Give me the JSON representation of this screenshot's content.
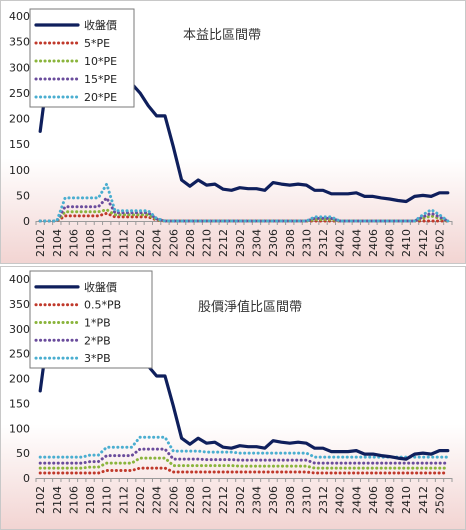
{
  "chart_data": [
    {
      "type": "line",
      "title": "本益比區間帶",
      "ylim": [
        0,
        400
      ],
      "yticks": [
        0,
        50,
        100,
        150,
        200,
        250,
        300,
        350,
        400
      ],
      "x": [
        "2102",
        "2103",
        "2104",
        "2105",
        "2106",
        "2107",
        "2108",
        "2109",
        "2110",
        "2111",
        "2112",
        "2201",
        "2202",
        "2203",
        "2204",
        "2205",
        "2206",
        "2207",
        "2208",
        "2209",
        "2210",
        "2211",
        "2212",
        "2301",
        "2302",
        "2303",
        "2304",
        "2305",
        "2306",
        "2307",
        "2308",
        "2309",
        "2310",
        "2311",
        "2312",
        "2401",
        "2402",
        "2403",
        "2404",
        "2405",
        "2406",
        "2407",
        "2408",
        "2409",
        "2410",
        "2411",
        "2412",
        "2501",
        "2502",
        "2503"
      ],
      "xtick_labels": [
        "2102",
        "2104",
        "2106",
        "2108",
        "2110",
        "2112",
        "2202",
        "2204",
        "2206",
        "2208",
        "2210",
        "2212",
        "2302",
        "2304",
        "2306",
        "2308",
        "2310",
        "2312",
        "2402",
        "2404",
        "2406",
        "2408",
        "2410",
        "2412",
        "2502"
      ],
      "grid": false,
      "legend": "top-left",
      "series": [
        {
          "name": "收盤價",
          "color": "#0f1f5c",
          "style": "solid",
          "values": [
            175,
            300,
            320,
            310,
            300,
            300,
            310,
            305,
            290,
            250,
            235,
            268,
            250,
            225,
            205,
            205,
            145,
            80,
            68,
            80,
            70,
            72,
            62,
            60,
            65,
            63,
            63,
            60,
            75,
            72,
            70,
            72,
            70,
            60,
            60,
            53,
            53,
            53,
            55,
            48,
            48,
            45,
            43,
            40,
            38,
            48,
            50,
            48,
            55,
            55
          ]
        },
        {
          "name": "5*PE",
          "color": "#c0392b",
          "style": "dotted",
          "values": [
            0,
            0,
            0,
            10,
            10,
            10,
            10,
            10,
            15,
            8,
            8,
            8,
            8,
            8,
            2,
            0,
            0,
            0,
            0,
            0,
            0,
            0,
            0,
            0,
            0,
            0,
            0,
            0,
            0,
            0,
            0,
            0,
            0,
            0,
            0,
            0,
            0,
            0,
            0,
            0,
            0,
            0,
            0,
            0,
            0,
            0,
            0,
            0,
            0,
            0
          ]
        },
        {
          "name": "10*PE",
          "color": "#8ab43c",
          "style": "dotted",
          "values": [
            0,
            0,
            0,
            18,
            18,
            18,
            18,
            18,
            22,
            12,
            12,
            12,
            12,
            12,
            3,
            0,
            0,
            0,
            0,
            0,
            0,
            0,
            0,
            0,
            0,
            0,
            0,
            0,
            0,
            0,
            0,
            0,
            0,
            3,
            3,
            3,
            0,
            0,
            0,
            0,
            0,
            0,
            0,
            0,
            0,
            0,
            5,
            10,
            5,
            0
          ]
        },
        {
          "name": "15*PE",
          "color": "#6a4c9c",
          "style": "dotted",
          "values": [
            0,
            0,
            0,
            28,
            28,
            28,
            28,
            28,
            45,
            16,
            16,
            16,
            16,
            16,
            4,
            0,
            0,
            0,
            0,
            0,
            0,
            0,
            0,
            0,
            0,
            0,
            0,
            0,
            0,
            0,
            0,
            0,
            0,
            5,
            5,
            5,
            0,
            0,
            0,
            0,
            0,
            0,
            0,
            0,
            0,
            0,
            8,
            15,
            8,
            0
          ]
        },
        {
          "name": "20*PE",
          "color": "#4aaed0",
          "style": "dotted",
          "values": [
            0,
            0,
            0,
            45,
            45,
            45,
            45,
            45,
            72,
            20,
            20,
            20,
            20,
            20,
            5,
            0,
            0,
            0,
            0,
            0,
            0,
            0,
            0,
            0,
            0,
            0,
            0,
            0,
            0,
            0,
            0,
            0,
            0,
            8,
            8,
            8,
            0,
            0,
            0,
            0,
            0,
            0,
            0,
            0,
            0,
            0,
            12,
            22,
            12,
            0
          ]
        }
      ]
    },
    {
      "type": "line",
      "title": "股價淨值比區間帶",
      "ylim": [
        0,
        400
      ],
      "yticks": [
        0,
        50,
        100,
        150,
        200,
        250,
        300,
        350,
        400
      ],
      "x": [
        "2102",
        "2103",
        "2104",
        "2105",
        "2106",
        "2107",
        "2108",
        "2109",
        "2110",
        "2111",
        "2112",
        "2201",
        "2202",
        "2203",
        "2204",
        "2205",
        "2206",
        "2207",
        "2208",
        "2209",
        "2210",
        "2211",
        "2212",
        "2301",
        "2302",
        "2303",
        "2304",
        "2305",
        "2306",
        "2307",
        "2308",
        "2309",
        "2310",
        "2311",
        "2312",
        "2401",
        "2402",
        "2403",
        "2404",
        "2405",
        "2406",
        "2407",
        "2408",
        "2409",
        "2410",
        "2411",
        "2412",
        "2501",
        "2502",
        "2503"
      ],
      "xtick_labels": [
        "2102",
        "2104",
        "2106",
        "2108",
        "2110",
        "2112",
        "2202",
        "2204",
        "2206",
        "2208",
        "2210",
        "2212",
        "2302",
        "2304",
        "2306",
        "2308",
        "2310",
        "2312",
        "2402",
        "2404",
        "2406",
        "2408",
        "2410",
        "2412",
        "2502"
      ],
      "grid": false,
      "legend": "top-left",
      "series": [
        {
          "name": "收盤價",
          "color": "#0f1f5c",
          "style": "solid",
          "values": [
            175,
            300,
            320,
            310,
            300,
            300,
            310,
            305,
            290,
            250,
            235,
            268,
            250,
            225,
            205,
            205,
            145,
            80,
            68,
            80,
            70,
            72,
            62,
            60,
            65,
            63,
            63,
            60,
            75,
            72,
            70,
            72,
            70,
            60,
            60,
            53,
            53,
            53,
            55,
            48,
            48,
            45,
            43,
            40,
            38,
            48,
            50,
            48,
            55,
            55
          ]
        },
        {
          "name": "0.5*PB",
          "color": "#c0392b",
          "style": "dotted",
          "values": [
            10,
            10,
            10,
            10,
            10,
            10,
            10,
            10,
            15,
            15,
            15,
            15,
            20,
            20,
            20,
            20,
            12,
            12,
            12,
            12,
            12,
            12,
            12,
            12,
            12,
            12,
            12,
            12,
            12,
            12,
            12,
            12,
            12,
            10,
            10,
            10,
            10,
            10,
            10,
            10,
            10,
            10,
            10,
            10,
            10,
            10,
            10,
            10,
            10,
            10
          ]
        },
        {
          "name": "1*PB",
          "color": "#8ab43c",
          "style": "dotted",
          "values": [
            20,
            20,
            20,
            20,
            20,
            20,
            22,
            22,
            30,
            30,
            30,
            30,
            40,
            40,
            40,
            40,
            25,
            25,
            25,
            25,
            25,
            25,
            25,
            25,
            24,
            24,
            24,
            24,
            24,
            24,
            24,
            24,
            24,
            20,
            20,
            20,
            20,
            20,
            20,
            20,
            20,
            20,
            20,
            20,
            20,
            20,
            20,
            20,
            20,
            20
          ]
        },
        {
          "name": "2*PB",
          "color": "#6a4c9c",
          "style": "dotted",
          "values": [
            30,
            30,
            30,
            30,
            30,
            30,
            33,
            33,
            45,
            45,
            45,
            45,
            58,
            58,
            58,
            58,
            38,
            38,
            38,
            38,
            37,
            37,
            37,
            37,
            36,
            36,
            36,
            36,
            36,
            36,
            36,
            36,
            36,
            30,
            30,
            30,
            30,
            30,
            30,
            30,
            30,
            30,
            30,
            30,
            30,
            30,
            30,
            30,
            30,
            30
          ]
        },
        {
          "name": "3*PB",
          "color": "#4aaed0",
          "style": "dotted",
          "values": [
            42,
            42,
            42,
            42,
            42,
            42,
            46,
            46,
            62,
            62,
            62,
            62,
            82,
            82,
            82,
            82,
            54,
            54,
            54,
            54,
            52,
            52,
            52,
            52,
            50,
            50,
            50,
            50,
            50,
            50,
            50,
            50,
            50,
            42,
            42,
            42,
            42,
            42,
            42,
            42,
            42,
            42,
            42,
            42,
            42,
            42,
            42,
            42,
            42,
            42
          ]
        }
      ]
    }
  ]
}
